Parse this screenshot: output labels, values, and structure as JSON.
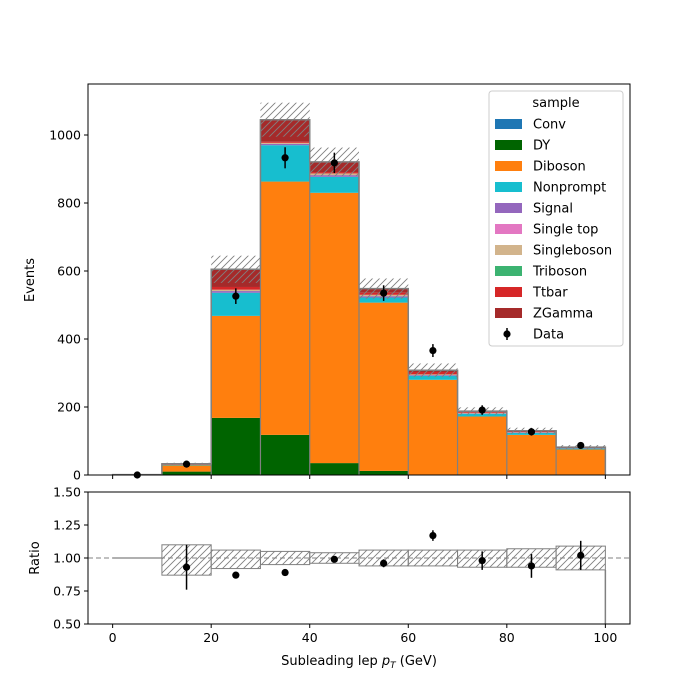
{
  "chart_data": {
    "type": "stacked histogram with ratio panel",
    "x_edges": [
      0,
      10,
      20,
      30,
      40,
      50,
      60,
      70,
      80,
      90,
      100
    ],
    "xlabel": "Subleading lep $p_T$ (GeV)",
    "xlabel_main": "Subleading lep ",
    "xlabel_sym": "p",
    "xlabel_sub": "T",
    "xlabel_unit": " (GeV)",
    "xlim": [
      -5,
      105
    ],
    "xticks": [
      "0",
      "20",
      "40",
      "60",
      "80",
      "100"
    ],
    "main": {
      "ylabel": "Events",
      "ylim": [
        0,
        1150
      ],
      "yticks": [
        "0",
        "200",
        "400",
        "600",
        "800",
        "1000"
      ],
      "legend_title": "sample",
      "legend_position": "top-right",
      "series": [
        {
          "name": "Conv",
          "color": "#1f77b4",
          "values": [
            0,
            0,
            0,
            0,
            0,
            0,
            0,
            0,
            0,
            0
          ]
        },
        {
          "name": "DY",
          "color": "#006400",
          "values": [
            0,
            10,
            168,
            118,
            35,
            12,
            0,
            0,
            0,
            0
          ]
        },
        {
          "name": "Diboson",
          "color": "#ff7f0e",
          "values": [
            1,
            18,
            300,
            745,
            795,
            495,
            280,
            172,
            118,
            75
          ]
        },
        {
          "name": "Nonprompt",
          "color": "#17becf",
          "values": [
            0,
            2,
            68,
            107,
            47,
            15,
            12,
            8,
            6,
            3
          ]
        },
        {
          "name": "Signal",
          "color": "#9467bd",
          "values": [
            0,
            0,
            5,
            4,
            5,
            4,
            2,
            1,
            1,
            1
          ]
        },
        {
          "name": "Single top",
          "color": "#e377c2",
          "values": [
            0,
            0,
            0,
            0,
            0,
            0,
            0,
            0,
            0,
            0
          ]
        },
        {
          "name": "Singleboson",
          "color": "#d2b48c",
          "values": [
            0,
            0,
            4,
            3,
            5,
            4,
            2,
            2,
            1,
            0
          ]
        },
        {
          "name": "Triboson",
          "color": "#3cb371",
          "values": [
            0,
            0,
            0,
            0,
            0,
            0,
            0,
            0,
            0,
            0
          ]
        },
        {
          "name": "Ttbar",
          "color": "#d62728",
          "values": [
            0,
            1,
            8,
            3,
            4,
            6,
            7,
            3,
            2,
            2
          ]
        },
        {
          "name": "ZGamma",
          "color": "#a52a2a",
          "values": [
            0,
            2,
            52,
            65,
            30,
            12,
            5,
            2,
            2,
            1
          ]
        }
      ],
      "mc_uncertainty_half": [
        0,
        3,
        40,
        50,
        42,
        30,
        20,
        11,
        9,
        6
      ],
      "data": {
        "name": "Data",
        "x": [
          5,
          15,
          25,
          35,
          45,
          55,
          65,
          75,
          85,
          95
        ],
        "y": [
          0,
          32,
          526,
          933,
          918,
          535,
          366,
          191,
          127,
          87
        ],
        "yerr": [
          0,
          6,
          23,
          31,
          30,
          23,
          19,
          14,
          11,
          9
        ]
      }
    },
    "ratio": {
      "ylabel": "Ratio",
      "ylim": [
        0.5,
        1.5
      ],
      "yticks": [
        "0.50",
        "0.75",
        "1.00",
        "1.25",
        "1.50"
      ],
      "reference_line": 1.0,
      "band_low": [
        1.0,
        0.87,
        0.92,
        0.95,
        0.96,
        0.94,
        0.94,
        0.93,
        0.93,
        0.91
      ],
      "band_high": [
        1.0,
        1.1,
        1.06,
        1.05,
        1.04,
        1.06,
        1.06,
        1.06,
        1.07,
        1.09
      ],
      "points": {
        "x": [
          15,
          25,
          35,
          45,
          55,
          65,
          75,
          85,
          95
        ],
        "y": [
          0.93,
          0.87,
          0.89,
          0.99,
          0.96,
          1.17,
          0.98,
          0.94,
          1.02
        ],
        "yerr": [
          0.17,
          0.02,
          0.02,
          0.02,
          0.03,
          0.04,
          0.07,
          0.09,
          0.11
        ]
      }
    },
    "hatch_color": "#808080",
    "outline_color": "#808080"
  }
}
